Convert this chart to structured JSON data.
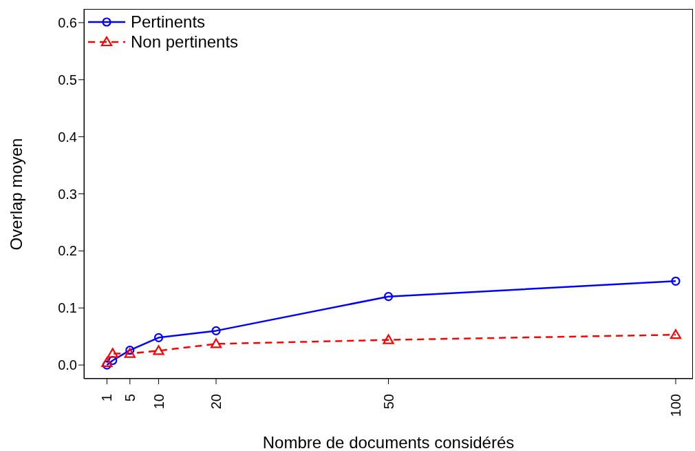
{
  "chart_data": {
    "type": "line",
    "xlabel": "Nombre de documents considérés",
    "ylabel": "Overlap moyen",
    "x": [
      1,
      2,
      5,
      10,
      20,
      50,
      100
    ],
    "series": [
      {
        "name": "Pertinents",
        "color": "#0000ff",
        "marker": "circle",
        "line_style": "solid",
        "values": [
          0.0,
          0.008,
          0.026,
          0.048,
          0.06,
          0.12,
          0.147
        ]
      },
      {
        "name": "Non pertinents",
        "color": "#ff0000",
        "marker": "triangle",
        "line_style": "dashed",
        "values": [
          0.004,
          0.02,
          0.02,
          0.025,
          0.037,
          0.044,
          0.053
        ]
      }
    ],
    "xlim": [
      -3,
      103
    ],
    "xticks": [
      1,
      5,
      10,
      20,
      50,
      100
    ],
    "ylim": [
      -0.024,
      0.624
    ],
    "yticks": [
      {
        "value": 0,
        "label": "0.0"
      },
      {
        "value": 0.1,
        "label": "0.1"
      },
      {
        "value": 0.2,
        "label": "0.2"
      },
      {
        "value": 0.3,
        "label": "0.3"
      },
      {
        "value": 0.4,
        "label": "0.4"
      },
      {
        "value": 0.5,
        "label": "0.5"
      },
      {
        "value": 0.6,
        "label": "0.6"
      }
    ],
    "legend": "top left"
  }
}
